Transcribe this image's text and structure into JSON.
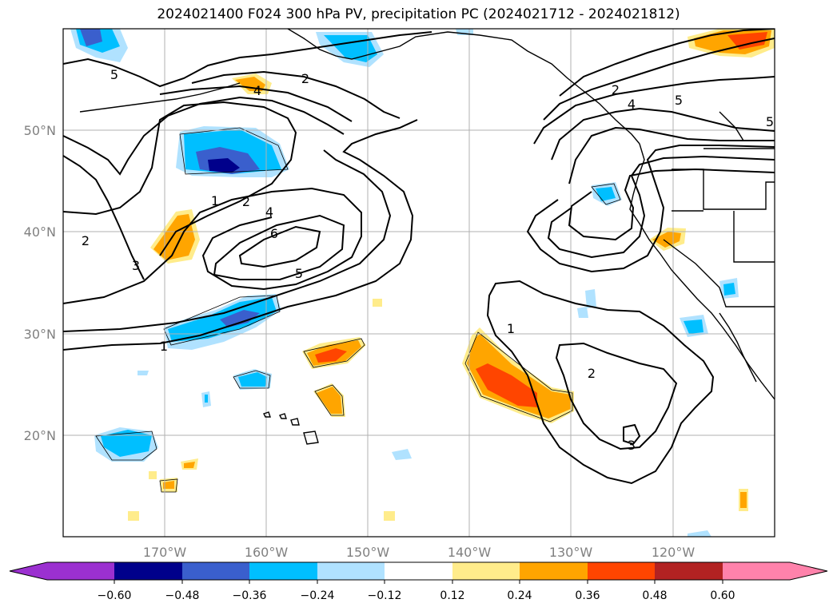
{
  "title": "2024021400 F024 300 hPa PV, precipitation PC (2024021712 - 2024021812)",
  "axes": {
    "x_ticks": [
      "170°W",
      "160°W",
      "150°W",
      "140°W",
      "130°W",
      "120°W"
    ],
    "y_ticks": [
      "50°N",
      "40°N",
      "30°N",
      "20°N"
    ]
  },
  "pv_contour_labels": [
    "5",
    "2",
    "4",
    "1",
    "2",
    "4",
    "6",
    "5",
    "2",
    "3",
    "1",
    "1",
    "2",
    "3",
    "2",
    "4",
    "5",
    "5"
  ],
  "colorbar": {
    "ticks": [
      "−0.60",
      "−0.48",
      "−0.36",
      "−0.24",
      "−0.12",
      "0.12",
      "0.24",
      "0.36",
      "0.48",
      "0.60"
    ],
    "colors": [
      "#9b30d0",
      "#00008b",
      "#3a5fcd",
      "#00bfff",
      "#b0e2ff",
      "#ffffff",
      "#ffec8b",
      "#ffa500",
      "#ff4500",
      "#b22222",
      "#ff82ab"
    ]
  }
}
